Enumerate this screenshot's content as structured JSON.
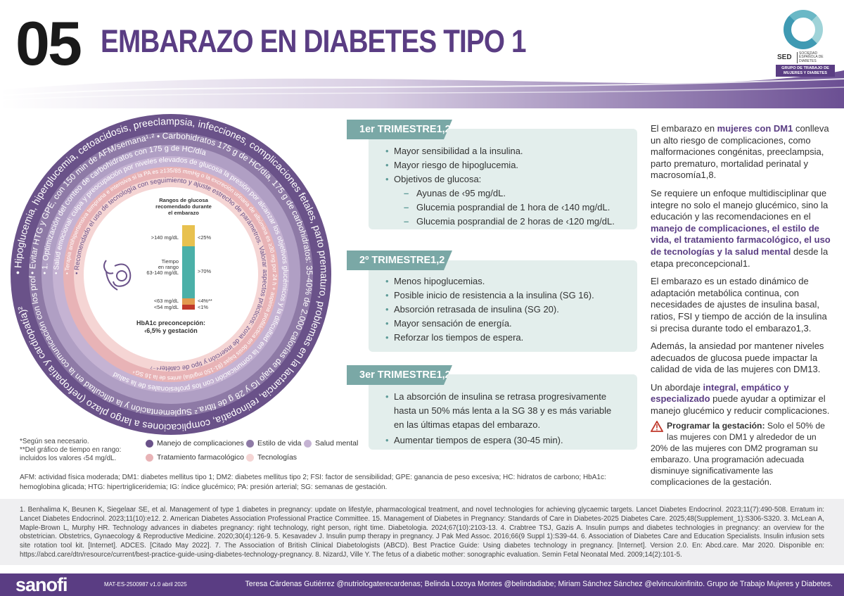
{
  "header": {
    "number": "05",
    "title": "EMBARAZO EN DIABETES TIPO 1"
  },
  "logo": {
    "name": "SED",
    "subtitle": "SOCIEDAD ESPAÑOLA DE DIABETES",
    "badge": "GRUPO DE TRABAJO DE MUJERES Y DIABETES"
  },
  "colors": {
    "purple": "#5a3d83",
    "teal": "#7aa8a6",
    "box": "#e3eeec",
    "ring_manejo": "#6a5289",
    "ring_estilo": "#8e7aa6",
    "ring_salud": "#c5b3d3",
    "ring_trat": "#e8b3b6",
    "ring_tec": "#f5d5d4"
  },
  "circle": {
    "ring1": "• Hipoglucemia, hiperglucemia, cetoacidosis, preeclampsia, infecciones, complicaciones fetales, parto prematuro, problemas en la lactancia, retinopatía, complicaciones a largo plazo (nefropatía y cardiopatía)²",
    "ring2": "• Evitar HTG y GPE, con 150 min de AFM/semana¹·² • Carbohidratos 175 g de HC/día, 175 g de carbohidratos: 35-40% de 2.000 calorías de bajo IG y 28 g de fibra.² Suplementación y la dificultad en la comunicación con los profesionales de la salud¹·³",
    "ring3": "• 1. Optimización del conteo de carbohidratos con 175 g de HC/día",
    "ring4": "• Salud emocional: culpa y preocupación por niveles elevados de glucosa la presión por alcanzar los objetivos glucémicos y la dificultad en la comunicación con los profesionales de la salud",
    "ring5": "• Terapia antihipertensiva temprana e intensiva si la PA es ≥135/85 mmHg o la excreción urinaria de albúmina es ≥30 mg por 24 h + aspirina profiláctica en dosis bajas (81-150 mg/día) antes de la 16 SG⁴",
    "ring6": "• Recomendado el uso de tecnología con seguimiento y ajuste estrecho de parámetros. Valorar aspectos prácticos: zona de inserción y tipo de catéter⁴⁻⁷"
  },
  "tir": {
    "title": "Rangos de glucosa recomendado durante el embarazo",
    "labels": [
      ">140 mg/dL",
      "Tiempo en rango 63-140 mg/dL",
      "<63 mg/dL",
      "<54 mg/dL"
    ],
    "values": [
      "<25%",
      ">70%",
      "<4%**",
      "<1%"
    ],
    "hba1c": "HbA1c preconcepción: ‹6,5% y gestación"
  },
  "notes": [
    "*Según sea necesario.",
    "**Del gráfico de tiempo en rango:",
    "incluidos los valores ‹54 mg/dL."
  ],
  "legend": [
    "Manejo de complicaciones",
    "Estilo de vida",
    "Salud mental",
    "Tratamiento farmacológico",
    "Tecnologías"
  ],
  "abbr": "AFM: actividad física moderada; DM1: diabetes mellitus tipo 1; DM2: diabetes mellitus tipo 2; FSI: factor de sensibilidad; GPE: ganancia de peso excesiva; HC: hidratos de carbono; HbA1c: hemoglobina glicada; HTG: hipertrigliceridemia; IG: índice glucémico; PA: presión arterial; SG: semanas de gestación.",
  "t1": {
    "label": "1er TRIMESTRE1,2",
    "items": [
      "Mayor sensibilidad a la insulina.",
      "Mayor riesgo de hipoglucemia.",
      "Objetivos de glucosa:"
    ],
    "subitems": [
      "Ayunas de ‹95 mg/dL.",
      "Glucemia posprandial de 1 hora de ‹140 mg/dL.",
      "Glucemia posprandial de 2 horas de ‹120 mg/dL."
    ]
  },
  "t2": {
    "label": "2º TRIMESTRE1,2",
    "items": [
      "Menos hipoglucemias.",
      "Posible inicio de resistencia a la insulina (SG 16).",
      "Absorción retrasada de insulina (SG 20).",
      "Mayor sensación de energía.",
      "Reforzar los tiempos de espera."
    ]
  },
  "t3": {
    "label": "3er TRIMESTRE1,2",
    "items": [
      "La absorción de insulina se retrasa progresivamente hasta un 50% más lenta a la SG 38 y es más variable en las últimas etapas del embarazo.",
      "Aumentar tiempos de espera (30-45 min)."
    ]
  },
  "right": {
    "p1a": "El embarazo en ",
    "p1b": "mujeres con DM1",
    "p1c": " conlleva un alto riesgo de complicaciones, como malformaciones congénitas, preeclampsia, parto prematuro, mortalidad perinatal y macrosomía1,8.",
    "p2a": "Se requiere un enfoque multidisciplinar que integre no solo el manejo glucémico, sino la educación y las recomendaciones en el ",
    "p2b": "manejo de complicaciones, el estilo de vida, el tratamiento farmacológico, el uso de tecnologías y la salud mental",
    "p2c": " desde la etapa preconcepcional1.",
    "p3": "El embarazo es un estado dinámico de adaptación metabólica continua, con necesidades de ajustes de insulina basal, ratios, FSI y tiempo de acción de la insulina si precisa durante todo el embarazo1,3.",
    "p4": "Además, la ansiedad por mantener niveles adecuados de glucosa puede impactar la calidad de vida de las mujeres con DM13.",
    "p5a": "Un abordaje ",
    "p5b": "integral, empático y especializado",
    "p5c": " puede ayudar a optimizar el manejo glucémico y reducir complicaciones.",
    "warn_title": "Programar la gestación:",
    "warn": " Solo el 50% de las mujeres con DM1 y alrededor de un 20% de las mujeres con DM2 programan su embarazo. Una programación adecuada disminuye significativamente las complicaciones de la gestación."
  },
  "refs": "1. Benhalima K, Beunen K, Siegelaar SE, et al. Management of type 1 diabetes in pregnancy: update on lifestyle, pharmacological treatment, and novel technologies for achieving glycaemic targets. Lancet Diabetes Endocrinol. 2023;11(7):490-508. Erratum in: Lancet Diabetes Endocrinol. 2023;11(10):e12. 2. American Diabetes Association Professional Practice Committee. 15. Management of Diabetes in Pregnancy: Standards of Care in Diabetes-2025 Diabetes Care. 2025;48(Supplement_1):S306-S320. 3. McLean A, Maple-Brown L, Murphy HR. Technology advances in diabetes pregnancy: right technology, right person, right time. Diabetologia. 2024;67(10):2103-13. 4. Crabtree TSJ, Gazis A. Insulin pumps and diabetes technologies in pregnancy: an overview for the obstetrician. Obstetrics, Gynaecology & Reproductive Medicine. 2020;30(4):126-9. 5. Kesavadev J. Insulin pump therapy in pregnancy. J Pak Med Assoc. 2016;66(9 Suppl 1):S39-44. 6. Association of Diabetes Care and Education Specialists. Insulin infusion sets site rotation tool kit. [Internet]. ADCES. [Citado May 2022]. 7. The Association of British Clinical Diabetologists (ABCD). Best Practice Guide: Using diabetes technology in pregnancy. [Internet]. Version 2.0. En: Abcd.care. Mar 2020. Disponible en: https://abcd.care/dtn/resource/current/best-practice-guide-using-diabetes-technology-pregnancy. 8. NizardJ, Ville Y. The fetus of a diabetic mother: sonographic evaluation. Semin Fetal Neonatal Med. 2009;14(2):101-5.",
  "footer": {
    "brand": "sanofi",
    "code": "MAT-ES-2500987 v1.0 abril 2025",
    "authors": "Teresa Cárdenas Gutiérrez @nutriologaterecardenas; Belinda Lozoya Montes @belindadiabe; Miriam Sánchez Sánchez @elvinculoinfinito. Grupo de Trabajo Mujeres y Diabetes."
  }
}
